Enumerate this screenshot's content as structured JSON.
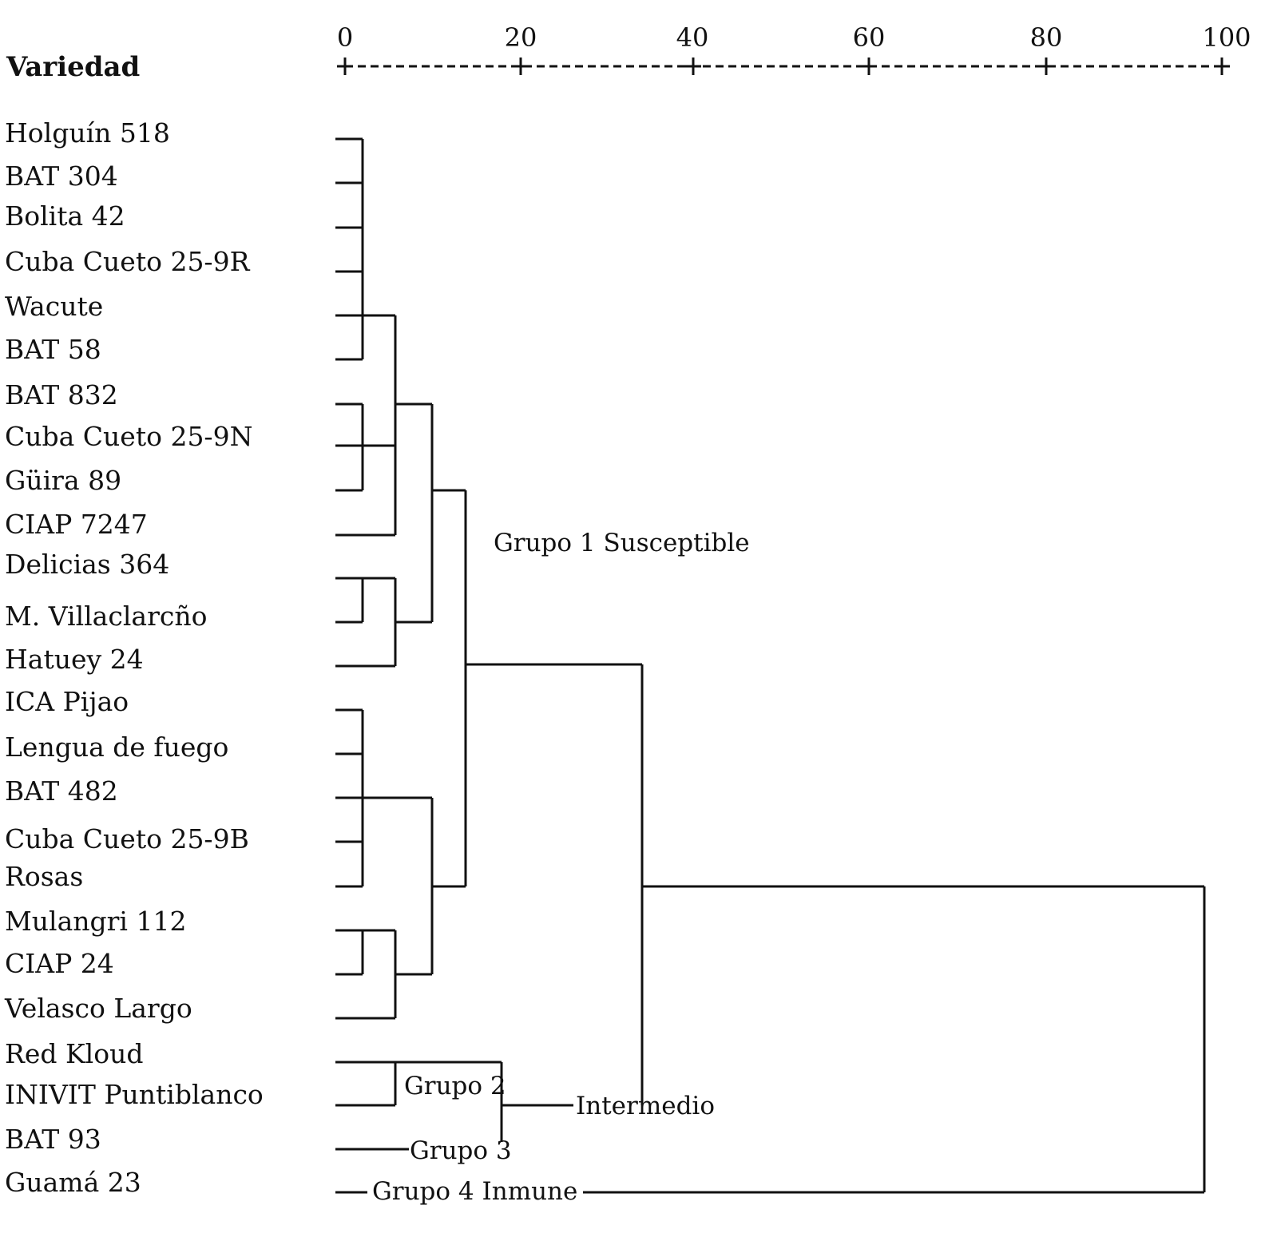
{
  "header": {
    "title": "Variedad"
  },
  "scale": {
    "ticks": [
      "0",
      "20",
      "40",
      "60",
      "80",
      "100"
    ]
  },
  "varieties": [
    "Holguín 518",
    "BAT 304",
    "Bolita 42",
    "Cuba Cueto 25-9R",
    "Wacute",
    "BAT 58",
    "BAT 832",
    "Cuba Cueto 25-9N",
    "Güira 89",
    "CIAP 7247",
    "Delicias 364",
    "M. Villaclarcño",
    "Hatuey 24",
    "ICA Pijao",
    "Lengua de fuego",
    "BAT 482",
    "Cuba Cueto 25-9B",
    "Rosas",
    "Mulangri 112",
    "CIAP 24",
    "Velasco Largo",
    "Red Kloud",
    "INIVIT Puntiblanco",
    "BAT 93",
    "Guamá 23"
  ],
  "groups": {
    "g1": "Grupo 1 Susceptible",
    "g2": "Grupo 2",
    "intermedio": "Intermedio",
    "g3": "Grupo 3",
    "g4": "Grupo 4 Inmune"
  }
}
